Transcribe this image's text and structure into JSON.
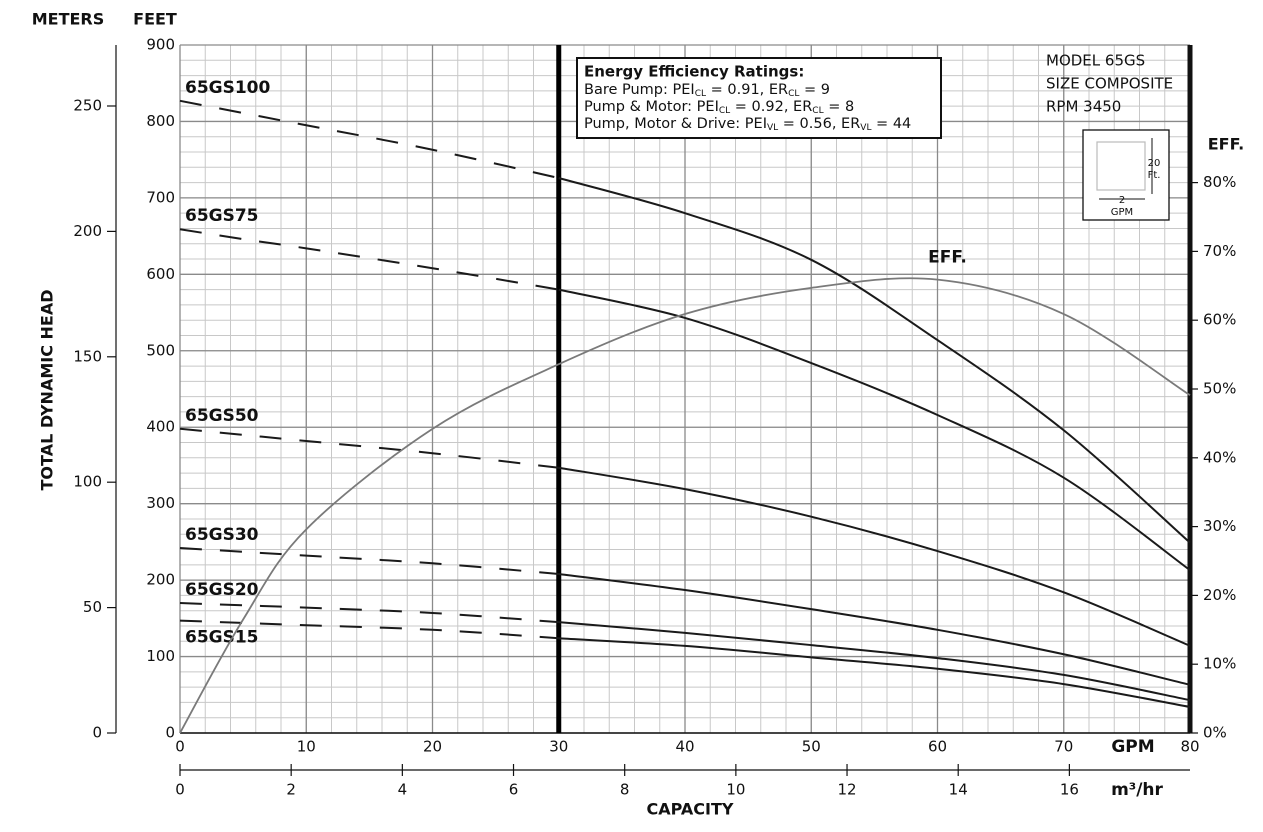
{
  "chart_data": {
    "type": "line",
    "title_left": "METERS",
    "title_feet": "FEET",
    "y_label": "TOTAL DYNAMIC HEAD",
    "x_label": "CAPACITY",
    "x_unit": "GPM",
    "x": [
      0,
      5,
      10,
      20,
      30,
      40,
      50,
      60,
      70,
      80
    ],
    "xlim": [
      0,
      80
    ],
    "xticks": [
      0,
      10,
      20,
      30,
      40,
      50,
      60,
      70,
      80
    ],
    "ylim": [
      0,
      900
    ],
    "yticks": [
      0,
      100,
      200,
      300,
      400,
      500,
      600,
      700,
      800,
      900
    ],
    "y2lim": [
      0,
      100
    ],
    "y2ticks": [
      {
        "value": 0,
        "label": "0%"
      },
      {
        "value": 10,
        "label": "10%"
      },
      {
        "value": 20,
        "label": "20%"
      },
      {
        "value": 30,
        "label": "30%"
      },
      {
        "value": 40,
        "label": "40%"
      },
      {
        "value": 50,
        "label": "50%"
      },
      {
        "value": 60,
        "label": "60%"
      },
      {
        "value": 70,
        "label": "70%"
      },
      {
        "value": 80,
        "label": "80%"
      }
    ],
    "y2_label": "EFF.",
    "meters_axis": {
      "ylim": [
        0,
        274.32
      ],
      "yticks": [
        0,
        50,
        100,
        150,
        200,
        250
      ]
    },
    "m3_axis": {
      "label": "m³/hr",
      "xlim": [
        0,
        18.17
      ],
      "xticks": [
        0,
        2,
        4,
        6,
        8,
        10,
        12,
        14,
        16
      ]
    },
    "minor_grid": {
      "x": 2,
      "y": 20
    },
    "grid": true,
    "reference_x": 30,
    "series": [
      {
        "name": "65GS100",
        "color": "#1a1a1a",
        "values": [
          827,
          811,
          795,
          763,
          726,
          680,
          619,
          514,
          396,
          249
        ]
      },
      {
        "name": "65GS75",
        "color": "#1a1a1a",
        "values": [
          659,
          646,
          634,
          608,
          580,
          543,
          484,
          416,
          334,
          213
        ]
      },
      {
        "name": "65GS50",
        "color": "#1a1a1a",
        "values": [
          398,
          390,
          382,
          366,
          347,
          319,
          283,
          238,
          184,
          114
        ]
      },
      {
        "name": "65GS30",
        "color": "#1a1a1a",
        "values": [
          242,
          237,
          232,
          222,
          208,
          187,
          162,
          135,
          103,
          63
        ]
      },
      {
        "name": "65GS20",
        "color": "#1a1a1a",
        "values": [
          170,
          167,
          164,
          157,
          145,
          131,
          115,
          98,
          76,
          43
        ]
      },
      {
        "name": "65GS15",
        "color": "#1a1a1a",
        "values": [
          147,
          144,
          141,
          135,
          124,
          114,
          99,
          84,
          64,
          34
        ]
      },
      {
        "name": "EFF.",
        "color": "#7a7a7a",
        "axis": "y2",
        "values": [
          0,
          16.5,
          29.6,
          44.2,
          53.6,
          60.9,
          64.7,
          65.9,
          60.9,
          49.1
        ]
      }
    ],
    "ratings_box": {
      "title": "Energy Efficiency Ratings:",
      "lines": [
        [
          "Bare Pump: PEI",
          "CL",
          " = 0.91, ER",
          "CL",
          " = 9"
        ],
        [
          "Pump & Motor: PEI",
          "CL",
          " = 0.92, ER",
          "CL",
          " = 8"
        ],
        [
          "Pump, Motor & Drive: PEI",
          "VL",
          " = 0.56, ER",
          "VL",
          " = 44"
        ]
      ]
    },
    "model_box": [
      "MODEL 65GS",
      "SIZE COMPOSITE",
      "RPM 3450"
    ],
    "scale_icon": {
      "height": "20",
      "height_unit": "Ft.",
      "width": "2",
      "width_unit": "GPM"
    }
  }
}
